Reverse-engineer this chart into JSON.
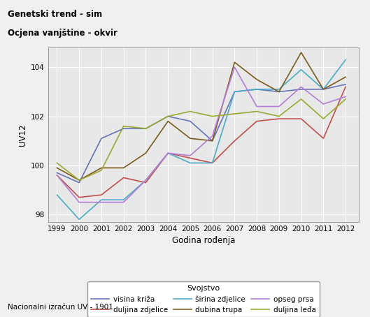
{
  "title_line1": "Genetski trend - sim",
  "title_line2": "Ocjena vanjštine - okvir",
  "xlabel": "Godina rođenja",
  "ylabel": "UV12",
  "legend_title": "Svojstvo",
  "footnote": "Nacionalni izračun UV - 1901",
  "years": [
    1999,
    2000,
    2001,
    2002,
    2003,
    2004,
    2005,
    2006,
    2007,
    2008,
    2009,
    2010,
    2011,
    2012
  ],
  "series": [
    {
      "name": "visina križa",
      "color": "#6674b8",
      "values": [
        99.7,
        99.3,
        101.1,
        101.5,
        101.5,
        102.0,
        101.8,
        101.0,
        103.0,
        103.1,
        103.0,
        103.1,
        103.1,
        103.3
      ]
    },
    {
      "name": "duljina zdjelice",
      "color": "#c0504d",
      "values": [
        99.6,
        98.7,
        98.8,
        99.5,
        99.3,
        100.5,
        100.3,
        100.1,
        101.0,
        101.8,
        101.9,
        101.9,
        101.1,
        103.2
      ]
    },
    {
      "name": "širina zdjelice",
      "color": "#4bacc6",
      "values": [
        98.8,
        97.8,
        98.6,
        98.6,
        99.4,
        100.5,
        100.1,
        100.1,
        103.0,
        103.1,
        103.1,
        103.9,
        103.1,
        104.3
      ]
    },
    {
      "name": "dubina trupa",
      "color": "#7b5c1e",
      "values": [
        99.9,
        99.4,
        99.9,
        99.9,
        100.5,
        101.8,
        101.1,
        101.0,
        104.2,
        103.5,
        103.0,
        104.6,
        103.1,
        103.6
      ]
    },
    {
      "name": "opseg prsa",
      "color": "#b57dd6",
      "values": [
        99.6,
        98.5,
        98.5,
        98.5,
        99.4,
        100.5,
        100.4,
        101.2,
        104.0,
        102.4,
        102.4,
        103.2,
        102.5,
        102.8
      ]
    },
    {
      "name": "duljina leđa",
      "color": "#9ba832",
      "values": [
        100.1,
        99.4,
        99.8,
        101.6,
        101.5,
        102.0,
        102.2,
        102.0,
        102.1,
        102.2,
        102.0,
        102.7,
        101.9,
        102.7
      ]
    }
  ],
  "ylim": [
    97.7,
    104.8
  ],
  "yticks": [
    98,
    100,
    102,
    104
  ],
  "background_color": "#f0f0f0",
  "plot_bg_color": "#e8e8e8",
  "grid_color": "#ffffff",
  "linewidth": 1.2
}
